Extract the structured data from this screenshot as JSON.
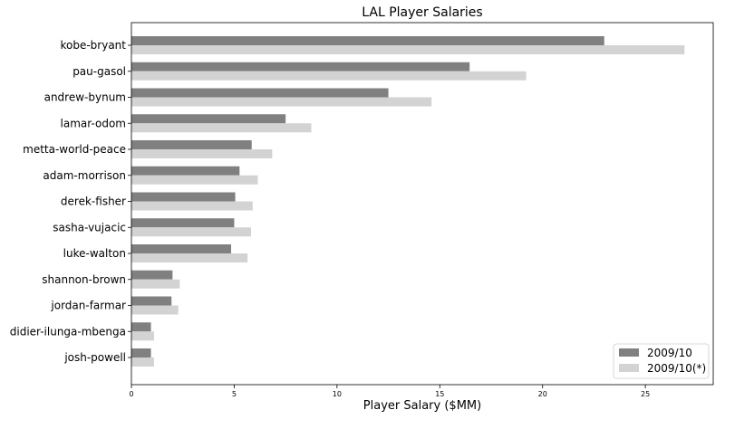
{
  "chart_data": {
    "type": "bar",
    "orientation": "horizontal",
    "title": "LAL Player Salaries",
    "xlabel": "Player Salary ($MM)",
    "ylabel": "",
    "xlim": [
      0,
      28.3
    ],
    "xticks": [
      0,
      5,
      10,
      15,
      20,
      25
    ],
    "grid": false,
    "legend_position": "lower-right",
    "categories": [
      "kobe-bryant",
      "pau-gasol",
      "andrew-bynum",
      "lamar-odom",
      "metta-world-peace",
      "adam-morrison",
      "derek-fisher",
      "sasha-vujacic",
      "luke-walton",
      "shannon-brown",
      "jordan-farmar",
      "didier-ilunga-mbenga",
      "josh-powell"
    ],
    "series": [
      {
        "name": "2009/10",
        "color": "#808080",
        "values": [
          23.0,
          16.45,
          12.5,
          7.5,
          5.85,
          5.26,
          5.05,
          5.0,
          4.85,
          2.0,
          1.95,
          0.95,
          0.95
        ]
      },
      {
        "name": "2009/10(*)",
        "color": "#d3d3d3",
        "values": [
          26.9,
          19.2,
          14.6,
          8.75,
          6.85,
          6.15,
          5.9,
          5.82,
          5.65,
          2.35,
          2.28,
          1.1,
          1.1
        ]
      }
    ]
  }
}
